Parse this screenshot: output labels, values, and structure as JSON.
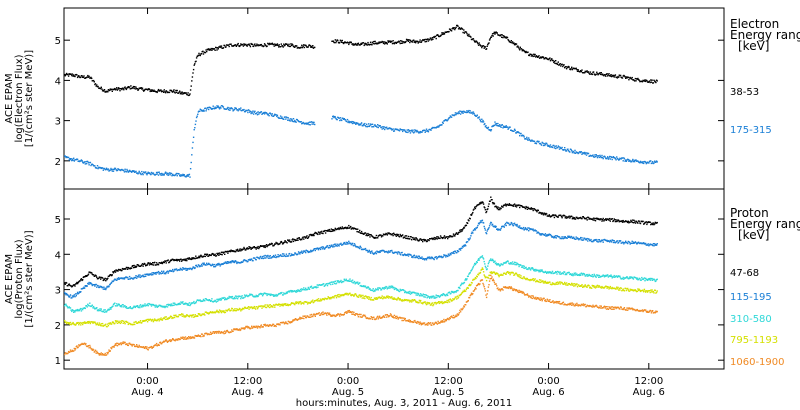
{
  "xaxis": {
    "tick_times": [
      "0:00",
      "12:00",
      "0:00",
      "12:00",
      "0:00",
      "12:00"
    ],
    "tick_dates": [
      "Aug. 4",
      "Aug. 4",
      "Aug. 5",
      "Aug. 5",
      "Aug. 6",
      "Aug. 6"
    ],
    "tick_hours": [
      24,
      36,
      48,
      60,
      72,
      84
    ],
    "xlabel": "hours:minutes, Aug.  3, 2011 - Aug.  6, 2011",
    "range_hours": [
      14,
      93
    ]
  },
  "chart_data": [
    {
      "type": "scatter",
      "ylabel_lines": [
        "ACE EPAM",
        "log(Electron Flux)",
        "[1/(cm²s ster MeV)]"
      ],
      "ylim": [
        1.3,
        5.8
      ],
      "yticks": [
        2,
        3,
        4,
        5
      ],
      "ytick_labels": [
        "2",
        "3",
        "4",
        "5"
      ],
      "legend_title_lines": [
        "Electron",
        "Energy range",
        "[keV]"
      ],
      "series": [
        {
          "name": "38-53",
          "color": "#000000",
          "x": [
            14,
            15,
            16,
            17,
            18,
            19,
            20,
            21,
            22,
            23,
            24,
            25,
            26,
            27,
            28,
            29,
            29.5,
            30,
            31,
            32,
            33,
            34,
            35,
            36,
            37,
            38,
            39,
            40,
            41,
            42,
            43,
            44,
            45,
            46,
            47,
            48,
            49,
            50,
            51,
            52,
            53,
            54,
            55,
            56,
            57,
            58,
            59,
            60,
            61,
            62,
            63,
            64,
            64.5,
            65,
            65.5,
            66,
            67,
            68,
            69,
            70,
            71,
            72,
            73,
            74,
            75,
            76,
            77,
            78,
            79,
            80,
            81,
            82,
            83,
            84,
            85
          ],
          "y": [
            4.15,
            4.15,
            4.1,
            4.1,
            3.85,
            3.75,
            3.8,
            3.8,
            3.85,
            3.8,
            3.78,
            3.75,
            3.75,
            3.75,
            3.7,
            3.68,
            4.4,
            4.65,
            4.75,
            4.8,
            4.85,
            4.9,
            4.9,
            4.9,
            4.88,
            4.9,
            4.9,
            4.88,
            4.9,
            4.85,
            4.88,
            4.85,
            null,
            5.0,
            4.98,
            4.95,
            4.9,
            4.92,
            4.95,
            4.95,
            4.97,
            4.97,
            5.0,
            4.98,
            5.0,
            5.05,
            5.15,
            5.25,
            5.35,
            5.2,
            5.0,
            4.85,
            4.82,
            5.1,
            5.2,
            5.15,
            5.05,
            4.9,
            4.72,
            4.65,
            4.6,
            4.55,
            4.45,
            4.35,
            4.3,
            4.25,
            4.2,
            4.18,
            4.15,
            4.12,
            4.1,
            4.05,
            4.02,
            4.0,
            3.98
          ]
        },
        {
          "name": "175-315",
          "color": "#1a7fd6",
          "x": [
            14,
            15,
            16,
            17,
            18,
            19,
            20,
            21,
            22,
            23,
            24,
            25,
            26,
            27,
            28,
            29,
            29.5,
            30,
            31,
            32,
            33,
            34,
            35,
            36,
            37,
            38,
            39,
            40,
            41,
            42,
            43,
            44,
            45,
            46,
            47,
            48,
            49,
            50,
            51,
            52,
            53,
            54,
            55,
            56,
            57,
            58,
            59,
            60,
            61,
            62,
            63,
            64,
            64.5,
            65,
            65.5,
            66,
            67,
            68,
            69,
            70,
            71,
            72,
            73,
            74,
            75,
            76,
            77,
            78,
            79,
            80,
            81,
            82,
            83,
            84,
            85
          ],
          "y": [
            2.1,
            2.05,
            2.0,
            1.95,
            1.85,
            1.8,
            1.8,
            1.78,
            1.75,
            1.72,
            1.7,
            1.7,
            1.7,
            1.68,
            1.65,
            1.65,
            2.8,
            3.25,
            3.3,
            3.35,
            3.35,
            3.3,
            3.3,
            3.25,
            3.2,
            3.2,
            3.15,
            3.1,
            3.05,
            3.0,
            2.95,
            2.95,
            null,
            3.1,
            3.05,
            3.0,
            2.95,
            2.9,
            2.9,
            2.85,
            2.8,
            2.78,
            2.75,
            2.75,
            2.75,
            2.8,
            2.9,
            3.1,
            3.2,
            3.25,
            3.2,
            3.0,
            2.85,
            2.8,
            2.95,
            2.9,
            2.85,
            2.75,
            2.6,
            2.5,
            2.45,
            2.4,
            2.35,
            2.3,
            2.25,
            2.2,
            2.15,
            2.12,
            2.1,
            2.08,
            2.05,
            2.02,
            2.0,
            1.98,
            1.97
          ]
        }
      ]
    },
    {
      "type": "scatter",
      "ylabel_lines": [
        "ACE EPAM",
        "log(Proton Flux)",
        "[1/(cm²s ster MeV)]"
      ],
      "ylim": [
        0.75,
        5.85
      ],
      "yticks": [
        1,
        2,
        3,
        4,
        5
      ],
      "ytick_labels": [
        "1",
        "2",
        "3",
        "4",
        "5"
      ],
      "legend_title_lines": [
        "Proton",
        "Energy range",
        "[keV]"
      ],
      "series": [
        {
          "name": "47-68",
          "color": "#000000",
          "x": [
            14,
            15,
            16,
            17,
            18,
            19,
            20,
            21,
            22,
            23,
            24,
            25,
            26,
            27,
            28,
            29,
            30,
            31,
            32,
            33,
            34,
            35,
            36,
            37,
            38,
            39,
            40,
            41,
            42,
            43,
            44,
            45,
            46,
            47,
            48,
            49,
            50,
            51,
            52,
            53,
            54,
            55,
            56,
            57,
            58,
            59,
            60,
            61,
            62,
            63,
            64,
            64.5,
            65,
            65.5,
            66,
            67,
            68,
            69,
            70,
            71,
            72,
            73,
            74,
            75,
            76,
            77,
            78,
            79,
            80,
            81,
            82,
            83,
            84,
            85
          ],
          "y": [
            3.2,
            3.1,
            3.3,
            3.5,
            3.35,
            3.3,
            3.55,
            3.6,
            3.65,
            3.7,
            3.75,
            3.75,
            3.8,
            3.85,
            3.85,
            3.9,
            3.95,
            4.0,
            4.0,
            4.05,
            4.1,
            4.15,
            4.2,
            4.2,
            4.25,
            4.3,
            4.35,
            4.4,
            4.45,
            4.5,
            4.6,
            4.65,
            4.7,
            4.75,
            4.8,
            4.7,
            4.6,
            4.5,
            4.55,
            4.6,
            4.55,
            4.5,
            4.45,
            4.4,
            4.45,
            4.5,
            4.5,
            4.6,
            4.8,
            5.3,
            5.5,
            5.2,
            5.6,
            5.4,
            5.3,
            5.45,
            5.4,
            5.35,
            5.3,
            5.2,
            5.1,
            5.1,
            5.08,
            5.05,
            5.05,
            5.02,
            5.0,
            5.0,
            4.98,
            4.95,
            4.95,
            4.92,
            4.9,
            4.88
          ]
        },
        {
          "name": "115-195",
          "color": "#1a7fd6",
          "x": [
            14,
            15,
            16,
            17,
            18,
            19,
            20,
            21,
            22,
            23,
            24,
            25,
            26,
            27,
            28,
            29,
            30,
            31,
            32,
            33,
            34,
            35,
            36,
            37,
            38,
            39,
            40,
            41,
            42,
            43,
            44,
            45,
            46,
            47,
            48,
            49,
            50,
            51,
            52,
            53,
            54,
            55,
            56,
            57,
            58,
            59,
            60,
            61,
            62,
            63,
            64,
            64.5,
            65,
            65.5,
            66,
            67,
            68,
            69,
            70,
            71,
            72,
            73,
            74,
            75,
            76,
            77,
            78,
            79,
            80,
            81,
            82,
            83,
            84,
            85
          ],
          "y": [
            2.9,
            2.8,
            3.0,
            3.2,
            3.1,
            3.05,
            3.3,
            3.35,
            3.35,
            3.4,
            3.45,
            3.5,
            3.5,
            3.55,
            3.6,
            3.6,
            3.7,
            3.75,
            3.7,
            3.75,
            3.8,
            3.8,
            3.85,
            3.9,
            3.95,
            3.95,
            4.0,
            4.0,
            4.05,
            4.1,
            4.15,
            4.2,
            4.25,
            4.3,
            4.35,
            4.25,
            4.15,
            4.05,
            4.1,
            4.1,
            4.05,
            4.0,
            3.95,
            3.9,
            3.9,
            3.95,
            4.0,
            4.1,
            4.3,
            4.7,
            5.0,
            4.6,
            4.9,
            4.8,
            4.7,
            4.9,
            4.85,
            4.75,
            4.7,
            4.6,
            4.55,
            4.5,
            4.5,
            4.48,
            4.45,
            4.42,
            4.4,
            4.4,
            4.38,
            4.35,
            4.35,
            4.32,
            4.3,
            4.28
          ]
        },
        {
          "name": "310-580",
          "color": "#2fd8d8",
          "x": [
            14,
            15,
            16,
            17,
            18,
            19,
            20,
            21,
            22,
            23,
            24,
            25,
            26,
            27,
            28,
            29,
            30,
            31,
            32,
            33,
            34,
            35,
            36,
            37,
            38,
            39,
            40,
            41,
            42,
            43,
            44,
            45,
            46,
            47,
            48,
            49,
            50,
            51,
            52,
            53,
            54,
            55,
            56,
            57,
            58,
            59,
            60,
            61,
            62,
            63,
            64,
            64.5,
            65,
            65.5,
            66,
            67,
            68,
            69,
            70,
            71,
            72,
            73,
            74,
            75,
            76,
            77,
            78,
            79,
            80,
            81,
            82,
            83,
            84,
            85
          ],
          "y": [
            2.6,
            2.4,
            2.45,
            2.6,
            2.45,
            2.4,
            2.6,
            2.55,
            2.5,
            2.55,
            2.6,
            2.55,
            2.55,
            2.6,
            2.65,
            2.6,
            2.7,
            2.75,
            2.7,
            2.75,
            2.8,
            2.8,
            2.85,
            2.85,
            2.9,
            2.85,
            2.9,
            2.95,
            3.0,
            3.05,
            3.1,
            3.15,
            3.2,
            3.25,
            3.3,
            3.2,
            3.1,
            3.0,
            3.05,
            3.1,
            3.0,
            2.95,
            2.9,
            2.85,
            2.8,
            2.85,
            2.9,
            3.0,
            3.3,
            3.7,
            4.0,
            3.6,
            3.9,
            3.8,
            3.7,
            3.8,
            3.75,
            3.65,
            3.6,
            3.55,
            3.5,
            3.5,
            3.48,
            3.45,
            3.45,
            3.42,
            3.4,
            3.4,
            3.38,
            3.35,
            3.35,
            3.32,
            3.3,
            3.28
          ]
        },
        {
          "name": "795-1193",
          "color": "#d4e000",
          "x": [
            14,
            15,
            16,
            17,
            18,
            19,
            20,
            21,
            22,
            23,
            24,
            25,
            26,
            27,
            28,
            29,
            30,
            31,
            32,
            33,
            34,
            35,
            36,
            37,
            38,
            39,
            40,
            41,
            42,
            43,
            44,
            45,
            46,
            47,
            48,
            49,
            50,
            51,
            52,
            53,
            54,
            55,
            56,
            57,
            58,
            59,
            60,
            61,
            62,
            63,
            64,
            64.5,
            65,
            65.5,
            66,
            67,
            68,
            69,
            70,
            71,
            72,
            73,
            74,
            75,
            76,
            77,
            78,
            79,
            80,
            81,
            82,
            83,
            84,
            85
          ],
          "y": [
            2.1,
            2.05,
            2.05,
            2.1,
            2.05,
            2.0,
            2.1,
            2.1,
            2.05,
            2.1,
            2.15,
            2.15,
            2.2,
            2.25,
            2.3,
            2.25,
            2.3,
            2.35,
            2.4,
            2.4,
            2.45,
            2.45,
            2.5,
            2.5,
            2.55,
            2.55,
            2.6,
            2.6,
            2.65,
            2.65,
            2.7,
            2.75,
            2.8,
            2.85,
            2.9,
            2.85,
            2.8,
            2.75,
            2.8,
            2.8,
            2.75,
            2.7,
            2.7,
            2.65,
            2.6,
            2.65,
            2.7,
            2.8,
            3.0,
            3.3,
            3.6,
            3.3,
            3.5,
            3.5,
            3.4,
            3.5,
            3.45,
            3.35,
            3.3,
            3.25,
            3.2,
            3.2,
            3.18,
            3.15,
            3.12,
            3.1,
            3.1,
            3.08,
            3.05,
            3.02,
            3.0,
            3.0,
            2.98,
            2.95
          ]
        },
        {
          "name": "1060-1900",
          "color": "#f08a24",
          "x": [
            14,
            15,
            16,
            17,
            18,
            19,
            20,
            21,
            22,
            23,
            24,
            25,
            26,
            27,
            28,
            29,
            30,
            31,
            32,
            33,
            34,
            35,
            36,
            37,
            38,
            39,
            40,
            41,
            42,
            43,
            44,
            45,
            46,
            47,
            48,
            49,
            50,
            51,
            52,
            53,
            54,
            55,
            56,
            57,
            58,
            59,
            60,
            61,
            62,
            63,
            64,
            64.5,
            65,
            65.5,
            66,
            67,
            68,
            69,
            70,
            71,
            72,
            73,
            74,
            75,
            76,
            77,
            78,
            79,
            80,
            81,
            82,
            83,
            84,
            85
          ],
          "y": [
            1.2,
            1.3,
            1.5,
            1.4,
            1.2,
            1.2,
            1.45,
            1.5,
            1.45,
            1.4,
            1.35,
            1.45,
            1.55,
            1.6,
            1.65,
            1.65,
            1.7,
            1.75,
            1.8,
            1.8,
            1.85,
            1.9,
            1.95,
            1.95,
            2.0,
            2.0,
            2.05,
            2.1,
            2.2,
            2.25,
            2.3,
            2.35,
            2.3,
            2.3,
            2.4,
            2.3,
            2.25,
            2.2,
            2.25,
            2.3,
            2.2,
            2.15,
            2.1,
            2.05,
            2.05,
            2.1,
            2.2,
            2.3,
            2.6,
            3.0,
            3.3,
            2.8,
            3.4,
            3.2,
            3.0,
            3.1,
            3.0,
            2.9,
            2.8,
            2.75,
            2.7,
            2.65,
            2.62,
            2.6,
            2.58,
            2.55,
            2.52,
            2.5,
            2.5,
            2.48,
            2.45,
            2.42,
            2.4,
            2.38
          ]
        }
      ]
    }
  ]
}
